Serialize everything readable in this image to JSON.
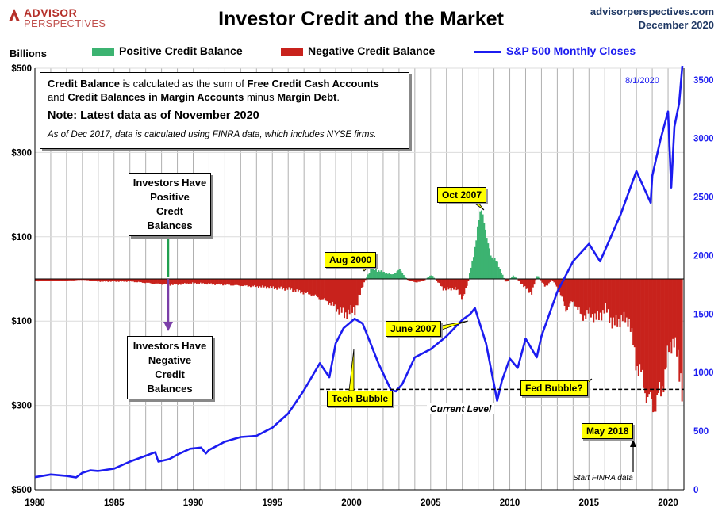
{
  "header": {
    "logo_line1": "ADVISOR",
    "logo_line2": "PERSPECTIVES",
    "title": "Investor Credit and the Market",
    "source_line1": "advisorperspectives.com",
    "source_line2": "December 2020"
  },
  "legend": {
    "positive": "Positive Credit Balance",
    "negative": "Negative Credit Balance",
    "sp500": "S&P 500 Monthly Closes"
  },
  "colors": {
    "positive": "#3cb371",
    "negative": "#c8221c",
    "sp500": "#1c1cf0",
    "grid": "#b0b0b0"
  },
  "notes": {
    "line1_a": "Credit Balance",
    "line1_b": " is calculated as the sum of ",
    "line1_c": "Free Credit Cash Accounts",
    "line2_a": "and ",
    "line2_b": "Credit Balances in Margin Accounts",
    "line2_c": " minus ",
    "line2_d": "Margin Debt",
    "line2_e": ".",
    "latest": "Note: Latest data as of November 2020",
    "finra_note": "As of Dec 2017, data is calculated using FINRA data, which includes NYSE firms."
  },
  "annotations": {
    "positive_box": [
      "Investors Have",
      "Positive",
      "Credt Balances"
    ],
    "negative_box": [
      "Investors Have",
      "Negative",
      "Credit Balances"
    ],
    "aug2000": "Aug 2000",
    "oct2007": "Oct 2007",
    "june2007": "June 2007",
    "tech_bubble": "Tech Bubble",
    "fed_bubble": "Fed Bubble?",
    "may2018": "May 2018",
    "current_level": "Current Level",
    "start_finra": "Start FINRA data",
    "latest_date": "8/1/2020"
  },
  "chart_data": {
    "type": "bar",
    "ylabel": "Billions",
    "left_axis": {
      "ticks": [
        500,
        300,
        100,
        -100,
        -300,
        -500
      ],
      "tick_labels": [
        "$500",
        "$300",
        "$100",
        "$100",
        "$300",
        "$500"
      ],
      "ylim": [
        -500,
        500
      ]
    },
    "right_axis": {
      "ticks": [
        0,
        500,
        1000,
        1500,
        2000,
        2500,
        3000,
        3500
      ],
      "tick_labels": [
        "0",
        "500",
        "1000",
        "1500",
        "2000",
        "2500",
        "3000",
        "3500"
      ],
      "ylim": [
        0,
        3600
      ]
    },
    "x_axis": {
      "ticks": [
        1980,
        1985,
        1990,
        1995,
        2000,
        2005,
        2010,
        2015,
        2020
      ],
      "tick_labels": [
        "1980",
        "1985",
        "1990",
        "1995",
        "2000",
        "2005",
        "2010",
        "2015",
        "2020"
      ],
      "xlim": [
        1980,
        2021
      ]
    },
    "grid": true,
    "credit_balance": {
      "name": "Credit Balance",
      "x": [
        1980,
        1982,
        1983,
        1984,
        1986,
        1987.8,
        1988.5,
        1990,
        1992,
        1994,
        1996,
        1997.5,
        1998.5,
        1999.5,
        2000.2,
        2000.7,
        2001.2,
        2001.8,
        2002.5,
        2003,
        2003.5,
        2004,
        2004.5,
        2005,
        2005.8,
        2006.5,
        2007,
        2007.3,
        2007.6,
        2007.9,
        2008.2,
        2008.5,
        2008.8,
        2009.2,
        2009.7,
        2010.2,
        2010.8,
        2011.3,
        2011.7,
        2012.2,
        2012.6,
        2013,
        2013.5,
        2014,
        2014.5,
        2015,
        2015.5,
        2016,
        2016.5,
        2017,
        2017.5,
        2017.9,
        2018.3,
        2018.7,
        2019,
        2019.5,
        2020,
        2020.3,
        2020.6,
        2020.9
      ],
      "values": [
        -5,
        -4,
        -2,
        -6,
        -6,
        -12,
        -14,
        -10,
        -14,
        -18,
        -24,
        -38,
        -55,
        -84,
        -72,
        -12,
        25,
        18,
        10,
        22,
        -2,
        -8,
        -5,
        10,
        -25,
        -22,
        -45,
        -10,
        45,
        110,
        180,
        90,
        55,
        35,
        -8,
        8,
        -15,
        -35,
        10,
        -20,
        -2,
        -22,
        -72,
        -52,
        -90,
        -80,
        -95,
        -70,
        -108,
        -95,
        -98,
        -192,
        -234,
        -284,
        -302,
        -270,
        -170,
        -140,
        -200,
        -262
      ]
    },
    "sp500": {
      "name": "S&P 500 Monthly Closes",
      "x": [
        1980,
        1981,
        1982,
        1982.6,
        1983,
        1983.5,
        1984,
        1985,
        1986,
        1987,
        1987.6,
        1987.8,
        1988.5,
        1989,
        1989.8,
        1990.5,
        1990.8,
        1991,
        1992,
        1993,
        1994,
        1995,
        1996,
        1997,
        1998,
        1998.6,
        1999,
        1999.5,
        2000.2,
        2000.7,
        2001.2,
        2001.7,
        2002.5,
        2002.8,
        2003.2,
        2004,
        2005,
        2006,
        2007,
        2007.5,
        2007.8,
        2008.5,
        2009.2,
        2009.5,
        2010,
        2010.5,
        2011,
        2011.7,
        2012,
        2013,
        2014,
        2015,
        2015.7,
        2016,
        2017,
        2018,
        2018.9,
        2019,
        2019.5,
        2020,
        2020.2,
        2020.4,
        2020.7,
        2020.9
      ],
      "values": [
        107,
        130,
        118,
        105,
        145,
        165,
        160,
        180,
        240,
        290,
        320,
        240,
        262,
        300,
        350,
        360,
        310,
        340,
        410,
        450,
        460,
        530,
        650,
        850,
        1080,
        960,
        1250,
        1380,
        1460,
        1420,
        1250,
        1080,
        850,
        840,
        900,
        1130,
        1200,
        1310,
        1450,
        1500,
        1550,
        1250,
        760,
        930,
        1120,
        1040,
        1290,
        1130,
        1310,
        1690,
        1950,
        2100,
        1950,
        2040,
        2350,
        2720,
        2450,
        2680,
        2980,
        3230,
        2580,
        3100,
        3300,
        3620
      ]
    }
  }
}
